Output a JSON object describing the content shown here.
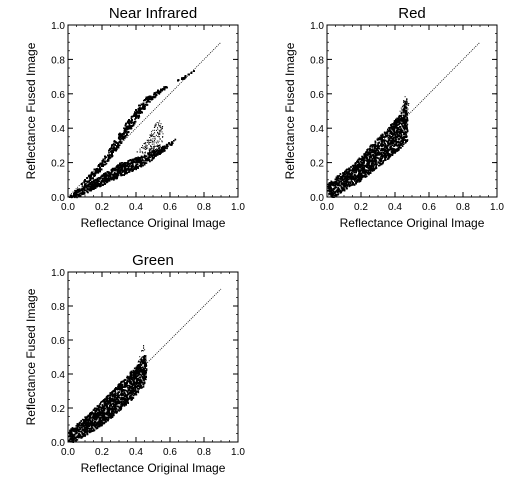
{
  "chart_data": [
    {
      "type": "scatter",
      "title": "Near Infrared",
      "xlabel": "Reflectance Original Image",
      "ylabel": "Reflectance Fused Image",
      "xlim": [
        0,
        1.0
      ],
      "ylim": [
        0,
        1.0
      ],
      "xticks": [
        "0.0",
        "0.2",
        "0.4",
        "0.6",
        "0.8",
        "1.0"
      ],
      "yticks": [
        "0.0",
        "0.2",
        "0.4",
        "0.6",
        "0.8",
        "1.0"
      ],
      "reference_line": {
        "x": [
          0,
          0.9
        ],
        "y": [
          0,
          0.9
        ]
      },
      "point_clusters": [
        {
          "shape": [
            [
              0.0,
              0.0
            ],
            [
              0.2,
              0.22
            ],
            [
              0.3,
              0.38
            ],
            [
              0.4,
              0.52
            ],
            [
              0.45,
              0.58
            ],
            [
              0.55,
              0.64
            ],
            [
              0.7,
              0.7
            ],
            [
              0.74,
              0.74
            ],
            [
              0.6,
              0.66
            ],
            [
              0.48,
              0.56
            ],
            [
              0.4,
              0.45
            ],
            [
              0.3,
              0.3
            ],
            [
              0.2,
              0.17
            ],
            [
              0.1,
              0.07
            ],
            [
              0.02,
              0.0
            ]
          ],
          "count": 2600
        },
        {
          "shape": [
            [
              0.0,
              0.0
            ],
            [
              0.1,
              0.07
            ],
            [
              0.3,
              0.2
            ],
            [
              0.45,
              0.25
            ],
            [
              0.55,
              0.3
            ],
            [
              0.63,
              0.34
            ],
            [
              0.6,
              0.3
            ],
            [
              0.45,
              0.19
            ],
            [
              0.3,
              0.12
            ],
            [
              0.15,
              0.05
            ],
            [
              0.05,
              0.0
            ]
          ],
          "count": 1300
        },
        {
          "shape": [
            [
              0.4,
              0.26
            ],
            [
              0.47,
              0.35
            ],
            [
              0.53,
              0.46
            ],
            [
              0.56,
              0.4
            ],
            [
              0.55,
              0.3
            ],
            [
              0.5,
              0.25
            ]
          ],
          "count": 180,
          "sparse": true
        }
      ]
    },
    {
      "type": "scatter",
      "title": "Red",
      "xlabel": "Reflectance Original Image",
      "ylabel": "Reflectance Fused Image",
      "xlim": [
        0,
        1.0
      ],
      "ylim": [
        0,
        1.0
      ],
      "xticks": [
        "0.0",
        "0.2",
        "0.4",
        "0.6",
        "0.8",
        "1.0"
      ],
      "yticks": [
        "0.0",
        "0.2",
        "0.4",
        "0.6",
        "0.8",
        "1.0"
      ],
      "reference_line": {
        "x": [
          0,
          0.9
        ],
        "y": [
          0,
          0.9
        ]
      },
      "point_clusters": [
        {
          "shape": [
            [
              0.0,
              0.02
            ],
            [
              0.0,
              0.08
            ],
            [
              0.06,
              0.13
            ],
            [
              0.15,
              0.19
            ],
            [
              0.25,
              0.3
            ],
            [
              0.35,
              0.4
            ],
            [
              0.44,
              0.5
            ],
            [
              0.46,
              0.56
            ],
            [
              0.47,
              0.45
            ],
            [
              0.47,
              0.33
            ],
            [
              0.4,
              0.26
            ],
            [
              0.3,
              0.18
            ],
            [
              0.2,
              0.1
            ],
            [
              0.1,
              0.04
            ],
            [
              0.03,
              0.0
            ]
          ],
          "count": 2600
        },
        {
          "shape": [
            [
              0.42,
              0.48
            ],
            [
              0.46,
              0.6
            ],
            [
              0.48,
              0.55
            ],
            [
              0.47,
              0.4
            ]
          ],
          "count": 80,
          "sparse": true
        }
      ]
    },
    {
      "type": "scatter",
      "title": "Green",
      "xlabel": "Reflectance Original Image",
      "ylabel": "Reflectance Fused Image",
      "xlim": [
        0,
        1.0
      ],
      "ylim": [
        0,
        1.0
      ],
      "xticks": [
        "0.0",
        "0.2",
        "0.4",
        "0.6",
        "0.8",
        "1.0"
      ],
      "yticks": [
        "0.0",
        "0.2",
        "0.4",
        "0.6",
        "0.8",
        "1.0"
      ],
      "reference_line": {
        "x": [
          0,
          0.9
        ],
        "y": [
          0,
          0.9
        ]
      },
      "point_clusters": [
        {
          "shape": [
            [
              0.0,
              0.01
            ],
            [
              0.0,
              0.07
            ],
            [
              0.06,
              0.12
            ],
            [
              0.15,
              0.2
            ],
            [
              0.25,
              0.3
            ],
            [
              0.35,
              0.4
            ],
            [
              0.42,
              0.48
            ],
            [
              0.45,
              0.52
            ],
            [
              0.46,
              0.42
            ],
            [
              0.45,
              0.34
            ],
            [
              0.38,
              0.26
            ],
            [
              0.28,
              0.17
            ],
            [
              0.18,
              0.09
            ],
            [
              0.08,
              0.03
            ],
            [
              0.02,
              0.0
            ]
          ],
          "count": 2400
        },
        {
          "shape": [
            [
              0.4,
              0.44
            ],
            [
              0.44,
              0.58
            ],
            [
              0.46,
              0.5
            ],
            [
              0.45,
              0.4
            ]
          ],
          "count": 70,
          "sparse": true
        }
      ]
    }
  ]
}
